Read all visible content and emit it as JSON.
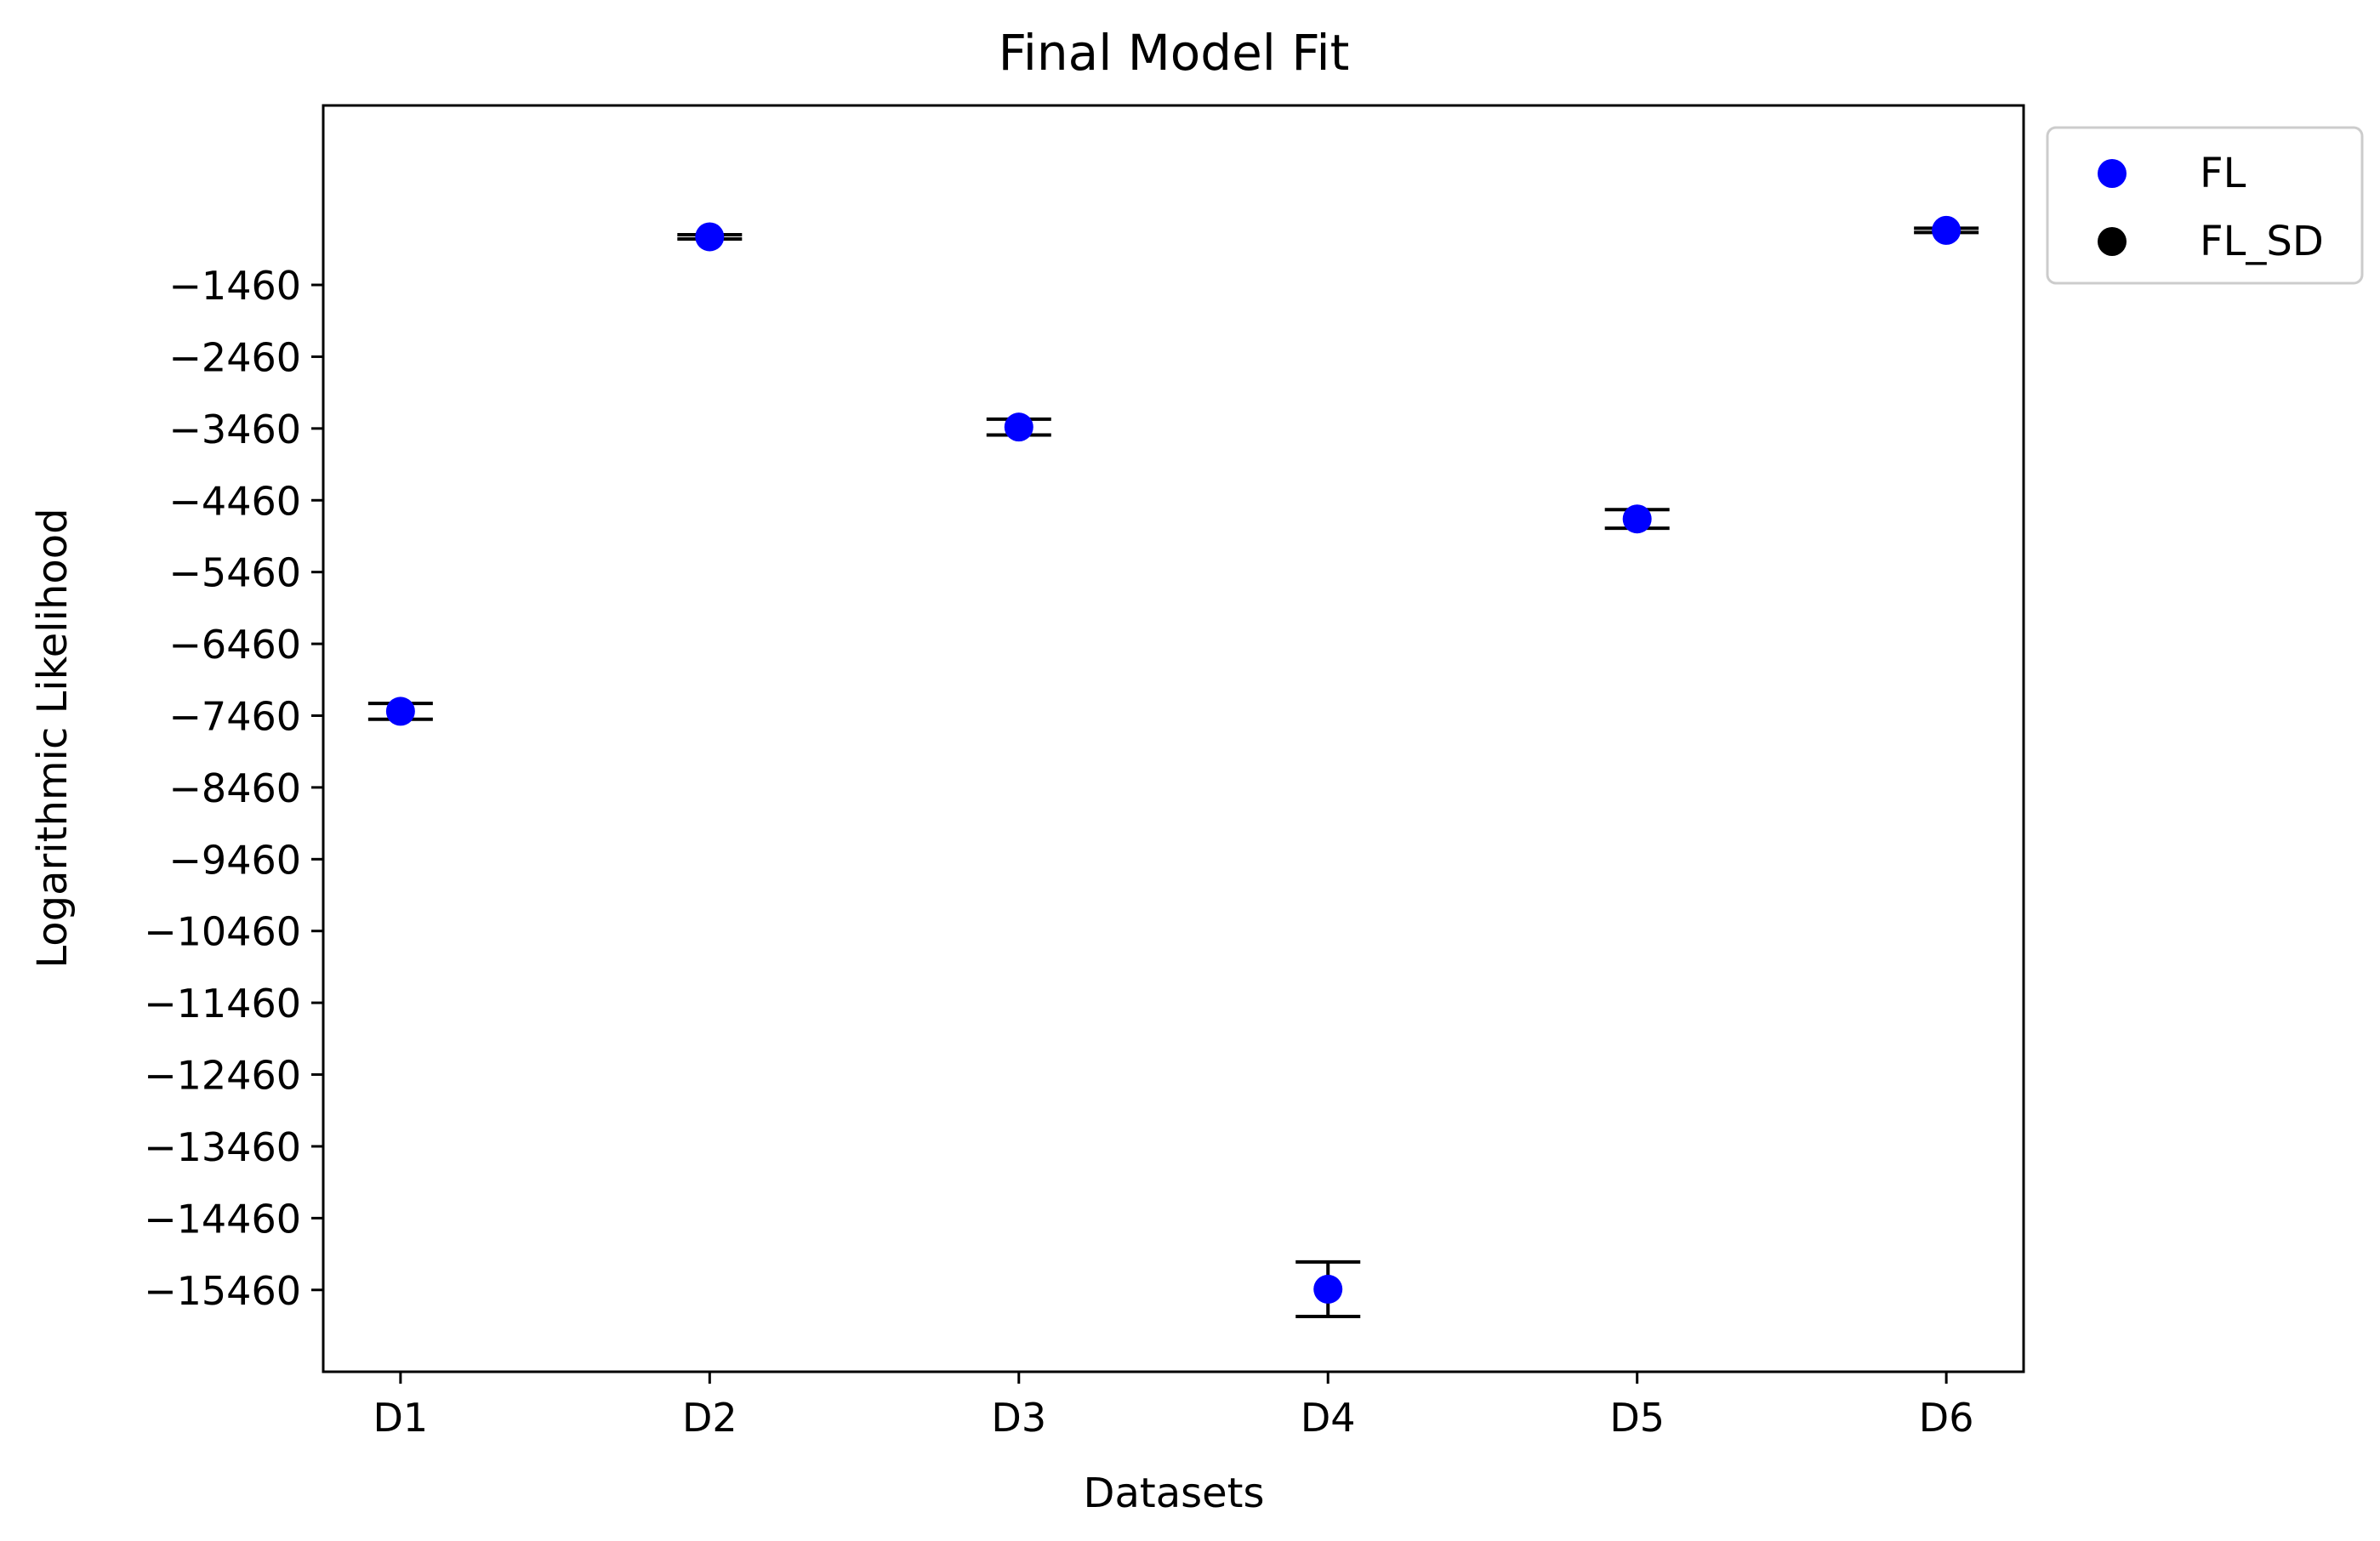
{
  "chart_data": {
    "type": "scatter",
    "title": "Final Model Fit",
    "xlabel": "Datasets",
    "ylabel": "Logarithmic Likelihood",
    "categories": [
      "D1",
      "D2",
      "D3",
      "D4",
      "D5",
      "D6"
    ],
    "yticks": [
      -1460,
      -2460,
      -3460,
      -4460,
      -5460,
      -6460,
      -7460,
      -8460,
      -9460,
      -10460,
      -11460,
      -12460,
      -13460,
      -14460,
      -15460
    ],
    "ylim": [
      -16600,
      1040
    ],
    "series": [
      {
        "name": "FL",
        "color": "#0000ff",
        "values": [
          -7400,
          -790,
          -3440,
          -15450,
          -4720,
          -700
        ]
      },
      {
        "name": "FL_SD",
        "color": "#000000",
        "values": [
          110,
          30,
          110,
          380,
          130,
          30
        ]
      }
    ],
    "legend": {
      "position": "outside-upper-right",
      "entries": [
        "FL",
        "FL_SD"
      ]
    }
  }
}
